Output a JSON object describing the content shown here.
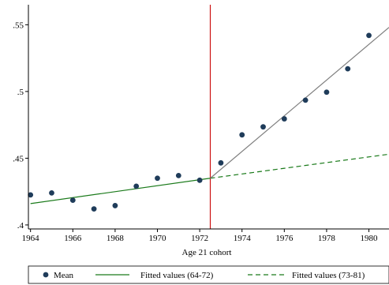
{
  "chart_data": {
    "type": "scatter",
    "title": "",
    "xlabel": "Age 21 cohort",
    "ylabel": "",
    "xlim": [
      1963.9,
      1980.95
    ],
    "ylim": [
      0.397,
      0.565
    ],
    "x_ticks": [
      1964,
      1966,
      1968,
      1970,
      1972,
      1974,
      1976,
      1978,
      1980
    ],
    "x_tick_labels": [
      "1964",
      "1966",
      "1968",
      "1970",
      "1972",
      "1974",
      "1976",
      "1978",
      "1980"
    ],
    "y_ticks": [
      0.4,
      0.45,
      0.5,
      0.55
    ],
    "y_tick_labels": [
      ".4",
      ".45",
      ".5",
      ".55"
    ],
    "grid": false,
    "legend_position": "bottom",
    "series": [
      {
        "name": "Mean",
        "kind": "points",
        "color": "#1f3c5a",
        "x": [
          1964,
          1965,
          1966,
          1967,
          1968,
          1969,
          1970,
          1971,
          1972,
          1973,
          1974,
          1975,
          1976,
          1977,
          1978,
          1979,
          1980
        ],
        "y": [
          0.4225,
          0.424,
          0.4185,
          0.412,
          0.4145,
          0.429,
          0.435,
          0.437,
          0.4335,
          0.4465,
          0.4675,
          0.4735,
          0.4795,
          0.4935,
          0.4995,
          0.517,
          0.542
        ]
      },
      {
        "name": "Fitted values (64-72)",
        "kind": "line",
        "color": "#1a7a1a",
        "dash": "solid",
        "x": [
          1964,
          1972.5
        ],
        "y": [
          0.416,
          0.435
        ]
      },
      {
        "name": "Fitted values (73-81)",
        "kind": "line",
        "color": "#1a7a1a",
        "dash": "dashed",
        "x": [
          1972.5,
          1980.95
        ],
        "y": [
          0.435,
          0.453
        ]
      },
      {
        "name": "",
        "kind": "line",
        "color": "#7f7f7f",
        "dash": "solid",
        "x": [
          1972.5,
          1980.95
        ],
        "y": [
          0.435,
          0.548
        ]
      }
    ],
    "annotations": [
      {
        "kind": "vline",
        "x": 1972.5,
        "color": "#cc1111"
      }
    ]
  },
  "legend": {
    "items": [
      {
        "label": "Mean",
        "kind": "marker",
        "color": "#1f3c5a"
      },
      {
        "label": "Fitted values (64-72)",
        "kind": "line-solid",
        "color": "#1a7a1a"
      },
      {
        "label": "Fitted values (73-81)",
        "kind": "line-dashed",
        "color": "#1a7a1a"
      }
    ]
  }
}
